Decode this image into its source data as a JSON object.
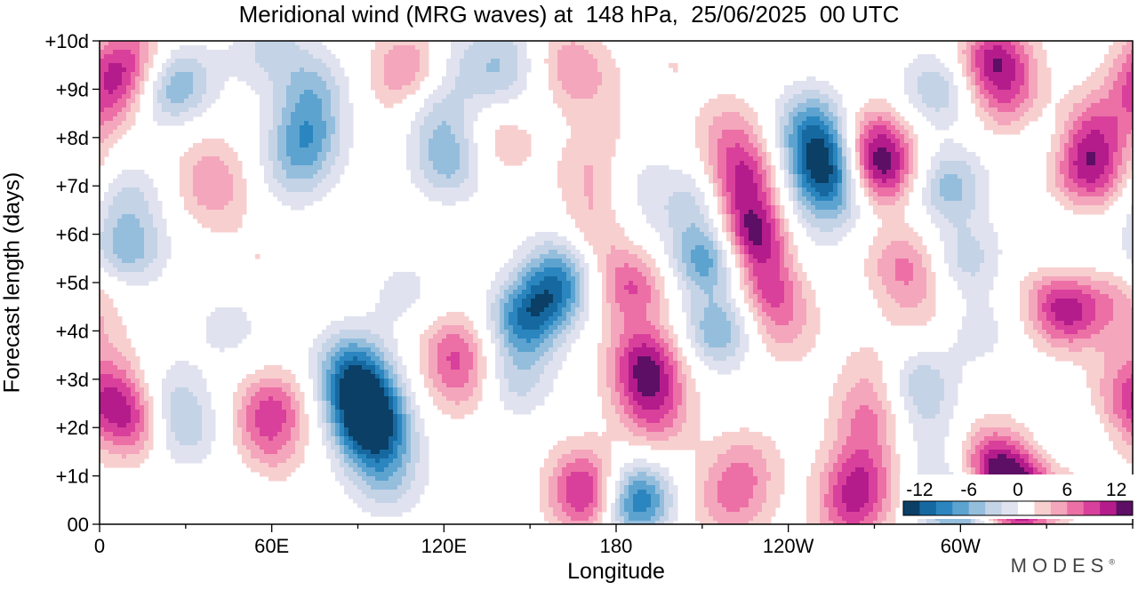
{
  "chart_data": {
    "type": "heatmap",
    "title": "Meridional wind (MRG waves) at  148 hPa,  25/06/2025  00 UTC",
    "xlabel": "Longitude",
    "ylabel": "Forecast length (days)",
    "x_ticks": [
      "0",
      "60E",
      "120E",
      "180",
      "120W",
      "60W"
    ],
    "x_tick_values": [
      0,
      60,
      120,
      180,
      240,
      300
    ],
    "x_range": [
      0,
      360
    ],
    "y_ticks": [
      "00",
      "+1d",
      "+2d",
      "+3d",
      "+4d",
      "+5d",
      "+6d",
      "+7d",
      "+8d",
      "+9d",
      "+10d"
    ],
    "y_tick_values": [
      0,
      1,
      2,
      3,
      4,
      5,
      6,
      7,
      8,
      9,
      10
    ],
    "y_range": [
      0,
      10
    ],
    "colorbar": {
      "tick_labels": [
        "-12",
        "-6",
        "0",
        "6",
        "12"
      ],
      "tick_values": [
        -12,
        -6,
        0,
        6,
        12
      ],
      "levels": [
        -14,
        -12,
        -10,
        -8,
        -6,
        -4,
        -2,
        2,
        4,
        6,
        8,
        10,
        12,
        14
      ],
      "colors": [
        "#0b3f66",
        "#1669a0",
        "#2b86bf",
        "#5da3d0",
        "#95bedd",
        "#c5d3e6",
        "#e0e2ef",
        "#ffffff",
        "#f8cfcf",
        "#f4a6bc",
        "#ec70a6",
        "#d9409b",
        "#b41c8c",
        "#5c0f64"
      ],
      "placement": "bottom-right"
    },
    "features": [
      {
        "lon": 5,
        "t": 9.2,
        "v": 8
      },
      {
        "lon": 12,
        "t": 9.8,
        "v": 5
      },
      {
        "lon": 2,
        "t": 8.5,
        "v": 3
      },
      {
        "lon": 28,
        "t": 9.2,
        "v": -6
      },
      {
        "lon": 22,
        "t": 8.8,
        "v": -3
      },
      {
        "lon": 10,
        "t": 5.7,
        "v": -7
      },
      {
        "lon": 10,
        "t": 6.8,
        "v": -4
      },
      {
        "lon": 40,
        "t": 6.8,
        "v": 4
      },
      {
        "lon": 38,
        "t": 7.5,
        "v": 3
      },
      {
        "lon": 72,
        "t": 8.0,
        "v": -8
      },
      {
        "lon": 74,
        "t": 9.0,
        "v": -6
      },
      {
        "lon": 68,
        "t": 7.2,
        "v": -4
      },
      {
        "lon": 55,
        "t": 9.7,
        "v": -2
      },
      {
        "lon": 62,
        "t": 10.0,
        "v": -3
      },
      {
        "lon": 45,
        "t": 4.1,
        "v": -3
      },
      {
        "lon": 50,
        "t": 1.0,
        "v": -2
      },
      {
        "lon": 55,
        "t": 5.5,
        "v": 2
      },
      {
        "lon": 85,
        "t": 5.5,
        "v": 2
      },
      {
        "lon": 5,
        "t": 2.6,
        "v": 7
      },
      {
        "lon": 12,
        "t": 2.0,
        "v": 7
      },
      {
        "lon": 0,
        "t": 3.5,
        "v": 3
      },
      {
        "lon": 28,
        "t": 2.0,
        "v": -6
      },
      {
        "lon": 25,
        "t": 2.8,
        "v": -3
      },
      {
        "lon": 60,
        "t": 2.4,
        "v": 8
      },
      {
        "lon": 58,
        "t": 1.5,
        "v": 5
      },
      {
        "lon": 92,
        "t": 2.5,
        "v": -14
      },
      {
        "lon": 96,
        "t": 1.8,
        "v": -11
      },
      {
        "lon": 88,
        "t": 3.3,
        "v": -9
      },
      {
        "lon": 100,
        "t": 0.9,
        "v": -5
      },
      {
        "lon": 105,
        "t": 4.8,
        "v": -3
      },
      {
        "lon": 108,
        "t": 9.5,
        "v": 6
      },
      {
        "lon": 105,
        "t": 8.8,
        "v": 3
      },
      {
        "lon": 110,
        "t": 8.8,
        "v": -2
      },
      {
        "lon": 125,
        "t": 9.6,
        "v": -3
      },
      {
        "lon": 140,
        "t": 9.2,
        "v": -4
      },
      {
        "lon": 142,
        "t": 10.0,
        "v": -3
      },
      {
        "lon": 122,
        "t": 7.5,
        "v": -7
      },
      {
        "lon": 118,
        "t": 8.5,
        "v": -4
      },
      {
        "lon": 140,
        "t": 7.9,
        "v": 4
      },
      {
        "lon": 124,
        "t": 3.6,
        "v": 7
      },
      {
        "lon": 126,
        "t": 2.8,
        "v": 4
      },
      {
        "lon": 148,
        "t": 4.2,
        "v": -10
      },
      {
        "lon": 158,
        "t": 4.8,
        "v": -9
      },
      {
        "lon": 145,
        "t": 3.0,
        "v": -5
      },
      {
        "lon": 162,
        "t": 5.5,
        "v": -5
      },
      {
        "lon": 132,
        "t": 1.2,
        "v": -2
      },
      {
        "lon": 170,
        "t": 0.5,
        "v": 9
      },
      {
        "lon": 168,
        "t": 1.1,
        "v": 4
      },
      {
        "lon": 188,
        "t": 0.6,
        "v": -8
      },
      {
        "lon": 185,
        "t": 0.3,
        "v": -5
      },
      {
        "lon": 172,
        "t": 6.0,
        "v": 5
      },
      {
        "lon": 172,
        "t": 7.2,
        "v": 4
      },
      {
        "lon": 178,
        "t": 8.0,
        "v": 3
      },
      {
        "lon": 168,
        "t": 9.2,
        "v": 4
      },
      {
        "lon": 162,
        "t": 9.8,
        "v": 3
      },
      {
        "lon": 185,
        "t": 4.9,
        "v": 8
      },
      {
        "lon": 190,
        "t": 3.4,
        "v": 10
      },
      {
        "lon": 192,
        "t": 2.6,
        "v": 7
      },
      {
        "lon": 184,
        "t": 7.5,
        "v": -3
      },
      {
        "lon": 188,
        "t": 6.5,
        "v": -2
      },
      {
        "lon": 200,
        "t": 9.5,
        "v": 2
      },
      {
        "lon": 195,
        "t": 2.0,
        "v": 3
      },
      {
        "lon": 212,
        "t": 5.5,
        "v": -10
      },
      {
        "lon": 216,
        "t": 4.0,
        "v": -8
      },
      {
        "lon": 208,
        "t": 6.7,
        "v": -5
      },
      {
        "lon": 228,
        "t": 6.0,
        "v": 13
      },
      {
        "lon": 224,
        "t": 7.1,
        "v": 10
      },
      {
        "lon": 234,
        "t": 4.9,
        "v": 8
      },
      {
        "lon": 238,
        "t": 4.0,
        "v": 4
      },
      {
        "lon": 220,
        "t": 8.1,
        "v": 5
      },
      {
        "lon": 240,
        "t": 6.5,
        "v": -2
      },
      {
        "lon": 245,
        "t": 5.5,
        "v": -2
      },
      {
        "lon": 225,
        "t": 1.2,
        "v": 5
      },
      {
        "lon": 222,
        "t": 0.3,
        "v": 4
      },
      {
        "lon": 212,
        "t": 0.6,
        "v": 2
      },
      {
        "lon": 252,
        "t": 7.5,
        "v": -12
      },
      {
        "lon": 248,
        "t": 8.3,
        "v": -8
      },
      {
        "lon": 256,
        "t": 6.8,
        "v": -7
      },
      {
        "lon": 272,
        "t": 7.3,
        "v": 11
      },
      {
        "lon": 270,
        "t": 8.0,
        "v": 7
      },
      {
        "lon": 280,
        "t": 5.4,
        "v": 6
      },
      {
        "lon": 286,
        "t": 4.5,
        "v": 3
      },
      {
        "lon": 265,
        "t": 1.0,
        "v": 8
      },
      {
        "lon": 268,
        "t": 2.2,
        "v": 6
      },
      {
        "lon": 262,
        "t": 0.2,
        "v": 7
      },
      {
        "lon": 270,
        "t": 3.2,
        "v": 3
      },
      {
        "lon": 292,
        "t": 9.0,
        "v": -6
      },
      {
        "lon": 296,
        "t": 7.0,
        "v": -7
      },
      {
        "lon": 302,
        "t": 5.5,
        "v": -5
      },
      {
        "lon": 306,
        "t": 4.0,
        "v": -3
      },
      {
        "lon": 285,
        "t": 2.9,
        "v": -6
      },
      {
        "lon": 290,
        "t": 1.8,
        "v": -3
      },
      {
        "lon": 295,
        "t": 0.6,
        "v": -4
      },
      {
        "lon": 302,
        "t": 0.1,
        "v": -7
      },
      {
        "lon": 312,
        "t": 9.6,
        "v": 11
      },
      {
        "lon": 318,
        "t": 8.7,
        "v": 6
      },
      {
        "lon": 315,
        "t": 0.9,
        "v": 11
      },
      {
        "lon": 322,
        "t": 0.4,
        "v": 9
      },
      {
        "lon": 310,
        "t": 1.5,
        "v": 5
      },
      {
        "lon": 330,
        "t": 5.0,
        "v": 3
      },
      {
        "lon": 345,
        "t": 7.3,
        "v": 10
      },
      {
        "lon": 345,
        "t": 8.2,
        "v": 7
      },
      {
        "lon": 337,
        "t": 4.4,
        "v": 10
      },
      {
        "lon": 355,
        "t": 4.6,
        "v": 4
      },
      {
        "lon": 335,
        "t": 5.5,
        "v": -3
      },
      {
        "lon": 330,
        "t": 8.2,
        "v": -3
      },
      {
        "lon": 340,
        "t": 2.0,
        "v": -3
      },
      {
        "lon": 345,
        "t": 1.0,
        "v": 2
      },
      {
        "lon": 352,
        "t": 2.5,
        "v": 3
      }
    ]
  },
  "branding": {
    "text": "MODES",
    "mark": "®"
  }
}
